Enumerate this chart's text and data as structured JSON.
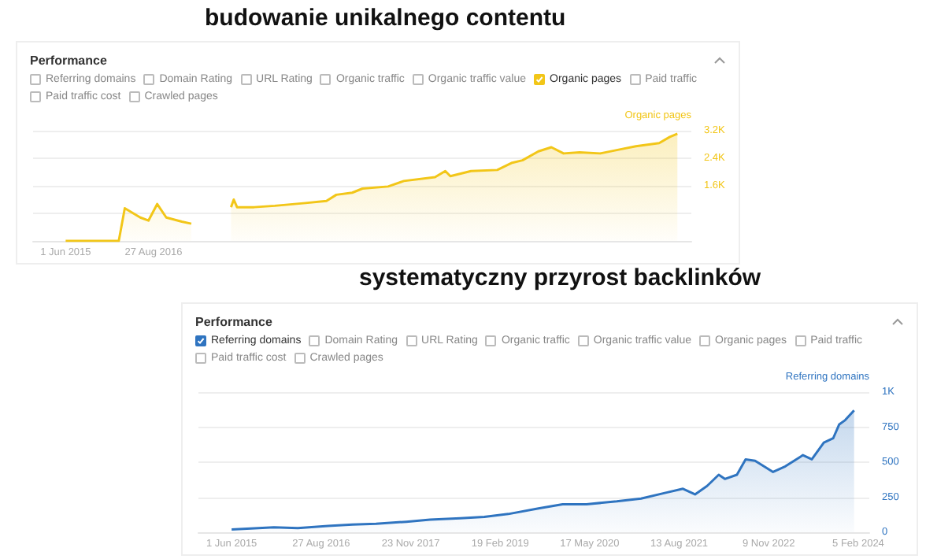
{
  "chart_data": [
    {
      "type": "area",
      "title": "budowanie unikalnego contentu",
      "ylabel": "Organic pages",
      "annotations": [
        "Performance",
        "Referring domains",
        "Domain Rating",
        "URL Rating",
        "Organic traffic",
        "Organic traffic value",
        "Organic pages",
        "Paid traffic",
        "Paid traffic cost",
        "Crawled pages"
      ],
      "series": [
        {
          "color": "#f2c618",
          "x": [
            "2015-06-01",
            "2016-03-01",
            "2016-04-01",
            "2016-06-20",
            "2016-08-01",
            "2016-09-15",
            "2016-11-01",
            "2017-01-20",
            "2017-03-10",
            "2017-07-01",
            "2017-10-01",
            "2017-10-15",
            "2017-11-01",
            "2018-01-28",
            "2018-05-15",
            "2018-10-20",
            "2019-02-05",
            "2019-03-28",
            "2019-06-18",
            "2019-08-10",
            "2019-12-20",
            "2020-03-10",
            "2020-08-18",
            "2020-10-10",
            "2020-11-05",
            "2021-02-20",
            "2021-07-05",
            "2021-09-20",
            "2021-11-12",
            "2022-02-02",
            "2022-04-10",
            "2022-06-12",
            "2022-09-02",
            "2022-12-18",
            "2023-04-02",
            "2023-06-20",
            "2023-10-18",
            "2023-12-12",
            "2024-01-20"
          ],
          "values": [
            0,
            0,
            950,
            680,
            590,
            1070,
            680,
            560,
            500,
            null,
            980,
            1200,
            980,
            980,
            1020,
            1100,
            1160,
            1340,
            1400,
            1520,
            1580,
            1740,
            1850,
            2030,
            1880,
            2030,
            2060,
            2270,
            2340,
            2600,
            2720,
            2540,
            2570,
            2540,
            2660,
            2750,
            2840,
            3020,
            3110
          ]
        }
      ],
      "xlim": [
        "2014-12-15",
        "2024-04-01"
      ],
      "xticks": [
        {
          "value": "2015-06-01",
          "label": "1 Jun 2015"
        },
        {
          "value": "2016-08-27",
          "label": "27 Aug 2016"
        }
      ],
      "ylim": [
        0,
        3200
      ],
      "yticks": [
        {
          "value": 0,
          "label": null
        },
        {
          "value": 800,
          "label": null
        },
        {
          "value": 1600,
          "label": "1.6K"
        },
        {
          "value": 2400,
          "label": "2.4K"
        },
        {
          "value": 3200,
          "label": "3.2K"
        }
      ],
      "grid": "y"
    },
    {
      "type": "area",
      "title": "systematyczny przyrost backlinków",
      "ylabel": "Referring domains",
      "annotations": [
        "Performance",
        "Referring domains",
        "Domain Rating",
        "URL Rating",
        "Organic traffic",
        "Organic traffic value",
        "Organic pages",
        "Paid traffic",
        "Paid traffic cost",
        "Crawled pages"
      ],
      "series": [
        {
          "color": "#2f74c0",
          "x": [
            "2015-06-01",
            "2016-01-01",
            "2016-05-01",
            "2016-10-01",
            "2017-02-01",
            "2017-06-01",
            "2017-11-01",
            "2018-03-01",
            "2018-08-01",
            "2018-12-01",
            "2019-04-01",
            "2019-09-01",
            "2020-01-01",
            "2020-05-01",
            "2020-10-01",
            "2021-02-01",
            "2021-06-01",
            "2021-09-01",
            "2021-11-01",
            "2022-01-01",
            "2022-03-01",
            "2022-04-01",
            "2022-06-01",
            "2022-07-15",
            "2022-09-01",
            "2022-12-01",
            "2023-02-01",
            "2023-05-01",
            "2023-06-15",
            "2023-08-15",
            "2023-10-01",
            "2023-11-01",
            "2023-12-01",
            "2024-01-15"
          ],
          "values": [
            20,
            35,
            30,
            45,
            55,
            60,
            75,
            90,
            100,
            110,
            130,
            170,
            200,
            200,
            220,
            240,
            280,
            310,
            270,
            330,
            410,
            380,
            410,
            520,
            510,
            430,
            470,
            550,
            520,
            640,
            670,
            770,
            800,
            870
          ]
        }
      ],
      "xlim": [
        "2014-12-15",
        "2024-04-01"
      ],
      "xticks": [
        {
          "value": "2015-06-01",
          "label": "1 Jun 2015"
        },
        {
          "value": "2016-08-27",
          "label": "27 Aug 2016"
        },
        {
          "value": "2017-11-23",
          "label": "23 Nov 2017"
        },
        {
          "value": "2019-02-19",
          "label": "19 Feb 2019"
        },
        {
          "value": "2020-05-17",
          "label": "17 May 2020"
        },
        {
          "value": "2021-08-13",
          "label": "13 Aug 2021"
        },
        {
          "value": "2022-11-09",
          "label": "9 Nov 2022"
        },
        {
          "value": "2024-02-05",
          "label": "5 Feb 2024"
        }
      ],
      "ylim": [
        0,
        1000
      ],
      "yticks": [
        0,
        250,
        500,
        750,
        {
          "value": 1000,
          "label": "1K"
        }
      ],
      "grid": "y"
    }
  ]
}
